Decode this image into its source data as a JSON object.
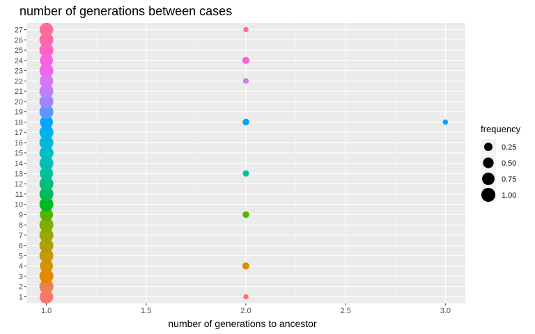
{
  "chart_data": {
    "type": "scatter",
    "title": "number of generations between cases",
    "xlabel": "number of generations to ancestor",
    "ylabel": "",
    "xlim": [
      0.9,
      3.1
    ],
    "x_ticks": [
      1.0,
      1.5,
      2.0,
      2.5,
      3.0
    ],
    "x_tick_labels": [
      "1.0",
      "1.5",
      "2.0",
      "2.5",
      "3.0"
    ],
    "y_categories": [
      "1",
      "2",
      "3",
      "4",
      "5",
      "6",
      "7",
      "8",
      "9",
      "10",
      "11",
      "12",
      "13",
      "14",
      "15",
      "16",
      "17",
      "18",
      "19",
      "20",
      "21",
      "22",
      "23",
      "24",
      "25",
      "26",
      "27"
    ],
    "grid": true,
    "legend": {
      "title": "frequency",
      "placement": "right",
      "entries": [
        {
          "label": "0.25",
          "value": 0.25
        },
        {
          "label": "0.50",
          "value": 0.5
        },
        {
          "label": "0.75",
          "value": 0.75
        },
        {
          "label": "1.00",
          "value": 1.0
        }
      ]
    },
    "points": [
      {
        "case": "1",
        "x": 1,
        "frequency": 0.95
      },
      {
        "case": "1",
        "x": 2,
        "frequency": 0.05
      },
      {
        "case": "2",
        "x": 1,
        "frequency": 1.0
      },
      {
        "case": "3",
        "x": 1,
        "frequency": 1.0
      },
      {
        "case": "4",
        "x": 1,
        "frequency": 0.85
      },
      {
        "case": "4",
        "x": 2,
        "frequency": 0.15
      },
      {
        "case": "5",
        "x": 1,
        "frequency": 1.0
      },
      {
        "case": "6",
        "x": 1,
        "frequency": 1.0
      },
      {
        "case": "7",
        "x": 1,
        "frequency": 1.0
      },
      {
        "case": "8",
        "x": 1,
        "frequency": 1.0
      },
      {
        "case": "9",
        "x": 1,
        "frequency": 0.88
      },
      {
        "case": "9",
        "x": 2,
        "frequency": 0.12
      },
      {
        "case": "10",
        "x": 1,
        "frequency": 1.0
      },
      {
        "case": "11",
        "x": 1,
        "frequency": 1.0
      },
      {
        "case": "12",
        "x": 1,
        "frequency": 1.0
      },
      {
        "case": "13",
        "x": 1,
        "frequency": 0.9
      },
      {
        "case": "13",
        "x": 2,
        "frequency": 0.1
      },
      {
        "case": "14",
        "x": 1,
        "frequency": 1.0
      },
      {
        "case": "15",
        "x": 1,
        "frequency": 1.0
      },
      {
        "case": "16",
        "x": 1,
        "frequency": 1.0
      },
      {
        "case": "17",
        "x": 1,
        "frequency": 1.0
      },
      {
        "case": "18",
        "x": 1,
        "frequency": 0.85
      },
      {
        "case": "18",
        "x": 2,
        "frequency": 0.12
      },
      {
        "case": "18",
        "x": 3,
        "frequency": 0.05
      },
      {
        "case": "19",
        "x": 1,
        "frequency": 1.0
      },
      {
        "case": "20",
        "x": 1,
        "frequency": 1.0
      },
      {
        "case": "21",
        "x": 1,
        "frequency": 1.0
      },
      {
        "case": "22",
        "x": 1,
        "frequency": 0.93
      },
      {
        "case": "22",
        "x": 2,
        "frequency": 0.07
      },
      {
        "case": "23",
        "x": 1,
        "frequency": 1.0
      },
      {
        "case": "24",
        "x": 1,
        "frequency": 0.85
      },
      {
        "case": "24",
        "x": 2,
        "frequency": 0.15
      },
      {
        "case": "25",
        "x": 1,
        "frequency": 1.0
      },
      {
        "case": "26",
        "x": 1,
        "frequency": 1.0
      },
      {
        "case": "27",
        "x": 1,
        "frequency": 0.95
      },
      {
        "case": "27",
        "x": 2,
        "frequency": 0.05
      }
    ],
    "colors": [
      "#F8766D",
      "#F07F4B",
      "#E58700",
      "#D69100",
      "#C49A00",
      "#B0A100",
      "#99A800",
      "#7DAE00",
      "#53B400",
      "#00B81F",
      "#00BC59",
      "#00BE7C",
      "#00C09A",
      "#00C1B4",
      "#00BFC4",
      "#00BAD9",
      "#00B2EB",
      "#00A5FF",
      "#5E96FF",
      "#9A86FF",
      "#BF7EF4",
      "#D876F7",
      "#EC69EF",
      "#F962DD",
      "#FF63C8",
      "#FF67B1",
      "#FF6C96"
    ]
  }
}
